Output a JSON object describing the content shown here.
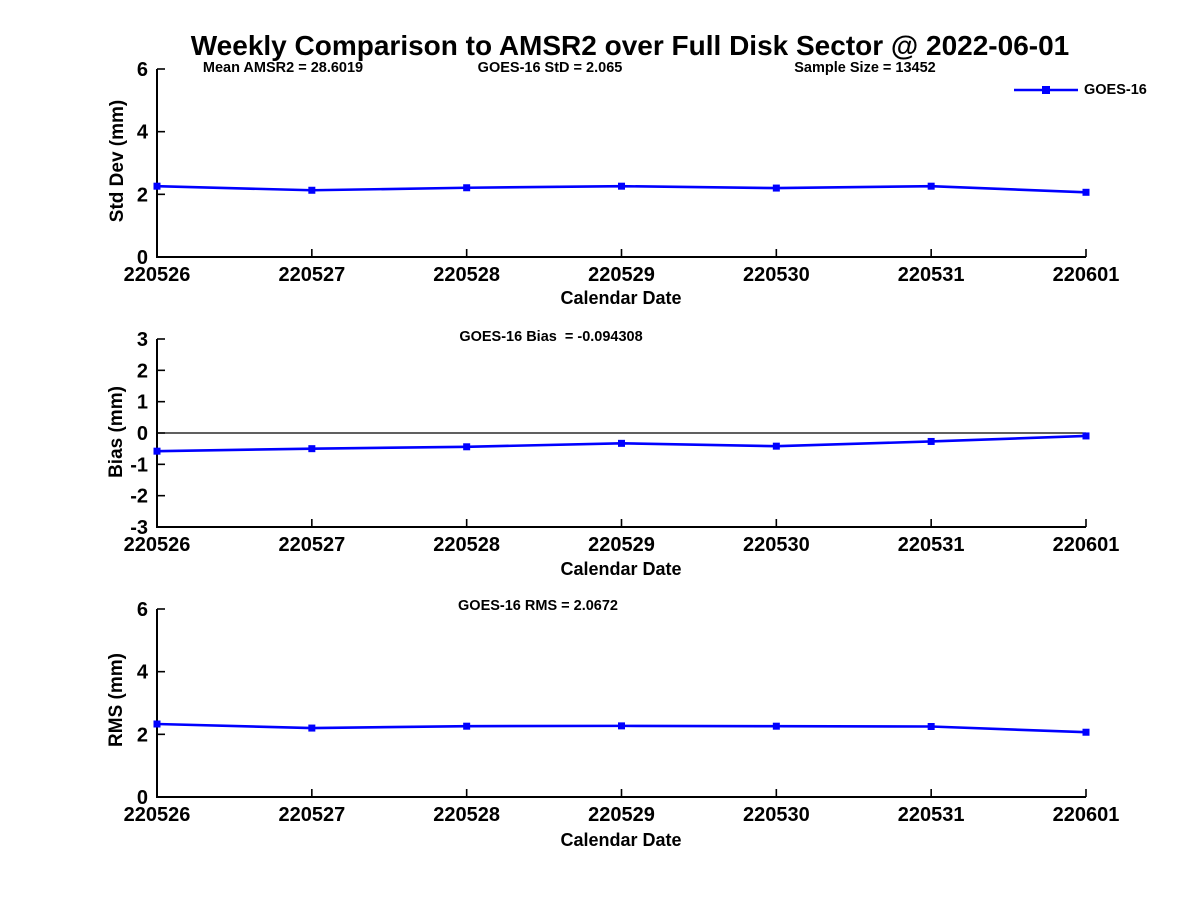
{
  "title": "Weekly Comparison to AMSR2 over Full Disk Sector @ 2022-06-01",
  "legend": {
    "label": "GOES-16"
  },
  "colors": {
    "line": "#0000FF",
    "axis": "#000000",
    "background": "#FFFFFF"
  },
  "chart_data": [
    {
      "type": "line",
      "categories": [
        "220526",
        "220527",
        "220528",
        "220529",
        "220530",
        "220531",
        "220601"
      ],
      "series": [
        {
          "name": "GOES-16",
          "values": [
            2.26,
            2.13,
            2.21,
            2.26,
            2.2,
            2.26,
            2.065
          ]
        }
      ],
      "title": "",
      "xlabel": "Calendar Date",
      "ylabel": "Std Dev (mm)",
      "ylim": [
        0,
        6
      ],
      "yticks": [
        0,
        2,
        4,
        6
      ],
      "grid": false,
      "zero_line": false,
      "legend_position": "top-right",
      "annotations": [
        "Mean AMSR2 = 28.6019",
        "GOES-16 StD = 2.065",
        "Sample Size = 13452"
      ]
    },
    {
      "type": "line",
      "categories": [
        "220526",
        "220527",
        "220528",
        "220529",
        "220530",
        "220531",
        "220601"
      ],
      "series": [
        {
          "name": "GOES-16",
          "values": [
            -0.58,
            -0.5,
            -0.44,
            -0.33,
            -0.42,
            -0.27,
            -0.094
          ]
        }
      ],
      "title": "",
      "xlabel": "Calendar Date",
      "ylabel": "Bias (mm)",
      "ylim": [
        -3,
        3
      ],
      "yticks": [
        -3,
        -2,
        -1,
        0,
        1,
        2,
        3
      ],
      "grid": false,
      "zero_line": true,
      "legend_position": "none",
      "annotations": [
        "GOES-16 Bias  = -0.094308"
      ]
    },
    {
      "type": "line",
      "categories": [
        "220526",
        "220527",
        "220528",
        "220529",
        "220530",
        "220531",
        "220601"
      ],
      "series": [
        {
          "name": "GOES-16",
          "values": [
            2.33,
            2.2,
            2.26,
            2.27,
            2.26,
            2.25,
            2.0672
          ]
        }
      ],
      "title": "",
      "xlabel": "Calendar Date",
      "ylabel": "RMS (mm)",
      "ylim": [
        0,
        6
      ],
      "yticks": [
        0,
        2,
        4,
        6
      ],
      "grid": false,
      "zero_line": false,
      "legend_position": "none",
      "annotations": [
        "GOES-16 RMS = 2.0672"
      ]
    }
  ]
}
